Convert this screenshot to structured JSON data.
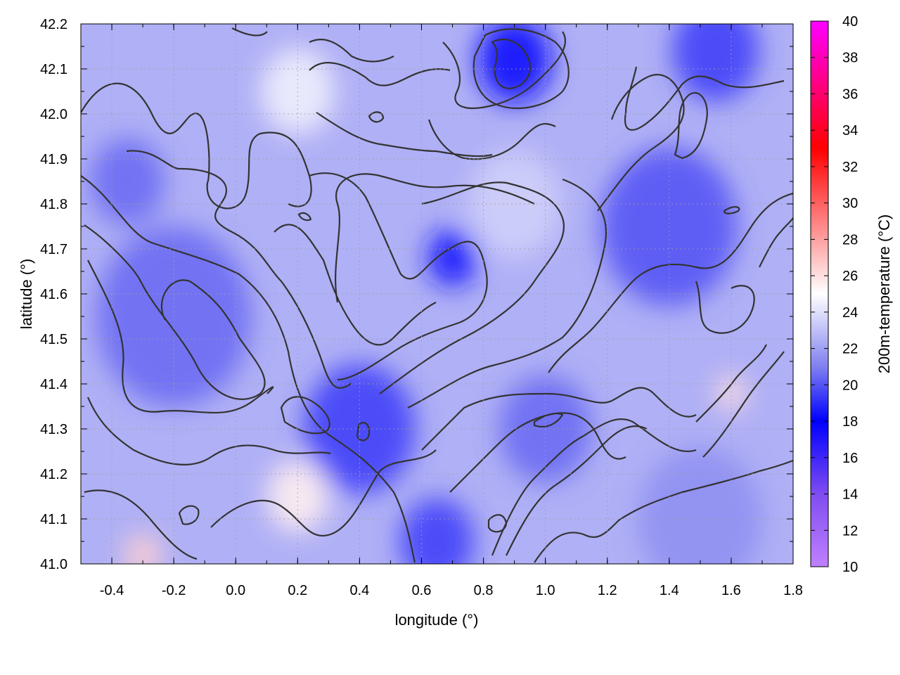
{
  "chart_data": {
    "type": "heatmap",
    "title": "",
    "xlabel": "longitude (°)",
    "ylabel": "latitude (°)",
    "colorbar_label": "200m-temperature (°C)",
    "xlim": [
      -0.5,
      1.8
    ],
    "ylim": [
      41.0,
      42.2
    ],
    "clim": [
      10,
      40
    ],
    "x_ticks": [
      -0.4,
      -0.2,
      0.0,
      0.2,
      0.4,
      0.6,
      0.8,
      1.0,
      1.2,
      1.4,
      1.6,
      1.8
    ],
    "x_tick_labels": [
      "-0.4",
      "-0.2",
      "0.0",
      "0.2",
      "0.4",
      "0.6",
      "0.8",
      "1.0",
      "1.2",
      "1.4",
      "1.6",
      "1.8"
    ],
    "y_ticks": [
      41.0,
      41.1,
      41.2,
      41.3,
      41.4,
      41.5,
      41.6,
      41.7,
      41.8,
      41.9,
      42.0,
      42.1,
      42.2
    ],
    "y_tick_labels": [
      "41.0",
      "41.1",
      "41.2",
      "41.3",
      "41.4",
      "41.5",
      "41.6",
      "41.7",
      "41.8",
      "41.9",
      "42.0",
      "42.1",
      "42.2"
    ],
    "colorbar_ticks": [
      10,
      12,
      14,
      16,
      18,
      20,
      22,
      24,
      26,
      28,
      30,
      32,
      34,
      36,
      38,
      40
    ],
    "colorbar_tick_labels": [
      "10",
      "12",
      "14",
      "16",
      "18",
      "20",
      "22",
      "24",
      "26",
      "28",
      "30",
      "32",
      "34",
      "36",
      "38",
      "40"
    ],
    "colormap": [
      {
        "value": 10,
        "color": "#c080ff"
      },
      {
        "value": 14,
        "color": "#7f4cf0"
      },
      {
        "value": 18,
        "color": "#0000ff"
      },
      {
        "value": 21,
        "color": "#8080f0"
      },
      {
        "value": 25,
        "color": "#ffffff"
      },
      {
        "value": 29,
        "color": "#ff8080"
      },
      {
        "value": 33,
        "color": "#ff0000"
      },
      {
        "value": 40,
        "color": "#ff00ff"
      }
    ],
    "grid": true,
    "contours": true,
    "field_regions": [
      {
        "lon": 0.9,
        "lat": 42.12,
        "value": 17.5,
        "spread": 0.12
      },
      {
        "lon": 1.55,
        "lat": 42.14,
        "value": 19.5,
        "spread": 0.14
      },
      {
        "lon": 1.4,
        "lat": 41.75,
        "value": 20.0,
        "spread": 0.22
      },
      {
        "lon": 0.7,
        "lat": 41.68,
        "value": 18.5,
        "spread": 0.08
      },
      {
        "lon": -0.2,
        "lat": 41.55,
        "value": 20.5,
        "spread": 0.25
      },
      {
        "lon": -0.35,
        "lat": 41.85,
        "value": 20.5,
        "spread": 0.12
      },
      {
        "lon": 0.4,
        "lat": 41.3,
        "value": 19.5,
        "spread": 0.18
      },
      {
        "lon": 0.65,
        "lat": 41.05,
        "value": 19.5,
        "spread": 0.12
      },
      {
        "lon": 1.0,
        "lat": 41.3,
        "value": 20.5,
        "spread": 0.15
      },
      {
        "lon": 0.2,
        "lat": 42.05,
        "value": 24.5,
        "spread": 0.12
      },
      {
        "lon": 0.9,
        "lat": 41.8,
        "value": 23.5,
        "spread": 0.15
      },
      {
        "lon": 0.2,
        "lat": 41.15,
        "value": 25.5,
        "spread": 0.1
      },
      {
        "lon": -0.3,
        "lat": 41.02,
        "value": 26.5,
        "spread": 0.06
      },
      {
        "lon": 1.6,
        "lat": 41.38,
        "value": 26.0,
        "spread": 0.05
      },
      {
        "lon": 1.5,
        "lat": 41.1,
        "value": 21.5,
        "spread": 0.2
      }
    ]
  }
}
